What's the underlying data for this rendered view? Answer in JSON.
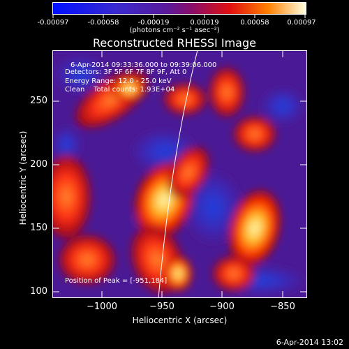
{
  "colorbar": {
    "labels": [
      "-0.00097",
      "-0.00058",
      "-0.00019",
      "0.00019",
      "0.00058",
      "0.00097"
    ],
    "units": "(photons cm⁻² s⁻¹ asec⁻²)"
  },
  "title": "Reconstructed RHESSI Image",
  "info": {
    "time_range": "6-Apr-2014 09:33:36.000 to 09:39:06.000",
    "detectors": "Detectors: 3F 5F 6F 7F 8F 9F, Att 0",
    "energy": "Energy Range: 12.0 - 25.0 keV",
    "clean": "Clean    Total counts: 1.93E+04"
  },
  "peak": "Position of Peak = [-951,184]",
  "axes": {
    "xlabel": "Heliocentric X (arcsec)",
    "ylabel": "Heliocentric Y (arcsec)",
    "xticks": [
      "−1000",
      "−950",
      "−900",
      "−850"
    ],
    "yticks": [
      "250",
      "200",
      "150",
      "100"
    ]
  },
  "timestamp": "6-Apr-2014 13:02",
  "colors": {
    "low": "#0000ff",
    "mid": "#5a1aa8",
    "high": "#ff2000",
    "peak": "#ffffc0"
  }
}
